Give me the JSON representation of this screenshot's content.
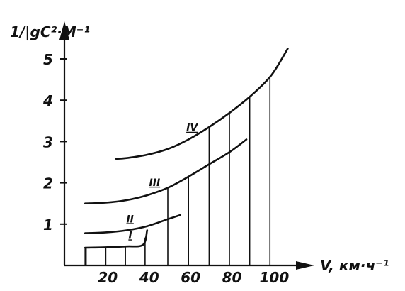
{
  "chart_data": {
    "type": "line",
    "ylabel": "1/|gC²·M⁻¹",
    "xlabel": "V, км·ч⁻¹",
    "xlim": [
      0,
      110
    ],
    "ylim": [
      0,
      5.5
    ],
    "x_ticks": [
      {
        "value": 20,
        "label": "20"
      },
      {
        "value": 40,
        "label": "40"
      },
      {
        "value": 60,
        "label": "60"
      },
      {
        "value": 80,
        "label": "80"
      },
      {
        "value": 100,
        "label": "100"
      }
    ],
    "y_ticks": [
      {
        "value": 1,
        "label": "1"
      },
      {
        "value": 2,
        "label": "2"
      },
      {
        "value": 3,
        "label": "3"
      },
      {
        "value": 4,
        "label": "4"
      },
      {
        "value": 5,
        "label": "5"
      }
    ],
    "hatched_under": [
      "I",
      "III",
      "IV"
    ],
    "series": [
      {
        "name": "I",
        "x": [
          10,
          20,
          30,
          38,
          40
        ],
        "y": [
          0.43,
          0.44,
          0.46,
          0.5,
          0.85
        ]
      },
      {
        "name": "II",
        "x": [
          10,
          20,
          30,
          40,
          50,
          56
        ],
        "y": [
          0.78,
          0.8,
          0.85,
          0.95,
          1.12,
          1.22
        ]
      },
      {
        "name": "III",
        "x": [
          10,
          20,
          30,
          40,
          50,
          60,
          70,
          80,
          88
        ],
        "y": [
          1.5,
          1.52,
          1.58,
          1.7,
          1.88,
          2.15,
          2.45,
          2.75,
          3.05
        ]
      },
      {
        "name": "IV",
        "x": [
          25,
          30,
          40,
          50,
          60,
          70,
          80,
          90,
          100,
          108
        ],
        "y": [
          2.58,
          2.6,
          2.68,
          2.82,
          3.05,
          3.35,
          3.7,
          4.1,
          4.6,
          5.25
        ]
      }
    ]
  }
}
